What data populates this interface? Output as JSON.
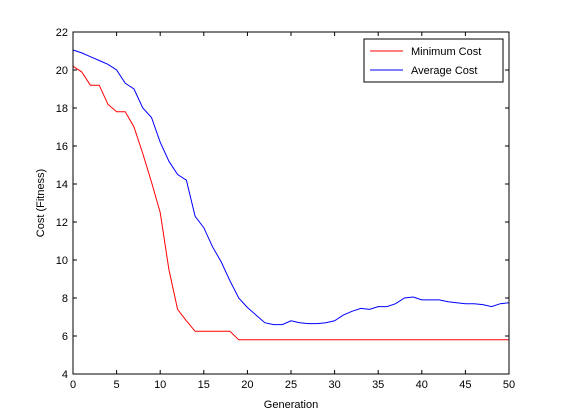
{
  "chart_data": {
    "type": "line",
    "title": "",
    "xlabel": "Generation",
    "ylabel": "Cost (Fitness)",
    "xlim": [
      0,
      50
    ],
    "ylim": [
      4,
      22
    ],
    "xticks": [
      0,
      5,
      10,
      15,
      20,
      25,
      30,
      35,
      40,
      45,
      50
    ],
    "yticks": [
      4,
      6,
      8,
      10,
      12,
      14,
      16,
      18,
      20,
      22
    ],
    "grid": false,
    "legend_position": "top-right",
    "series": [
      {
        "name": "Minimum Cost",
        "color": "#ff0000",
        "x": [
          0,
          1,
          2,
          3,
          4,
          5,
          6,
          7,
          8,
          9,
          10,
          11,
          12,
          13,
          14,
          15,
          16,
          17,
          18,
          19,
          20,
          21,
          22,
          23,
          24,
          25,
          26,
          27,
          28,
          29,
          30,
          31,
          32,
          33,
          34,
          35,
          36,
          37,
          38,
          39,
          40,
          41,
          42,
          43,
          44,
          45,
          46,
          47,
          48,
          49,
          50
        ],
        "y": [
          20.2,
          19.9,
          19.2,
          19.2,
          18.2,
          17.8,
          17.8,
          17.0,
          15.6,
          14.1,
          12.5,
          9.5,
          7.4,
          6.8,
          6.25,
          6.25,
          6.25,
          6.25,
          6.25,
          5.8,
          5.8,
          5.8,
          5.8,
          5.8,
          5.8,
          5.8,
          5.8,
          5.8,
          5.8,
          5.8,
          5.8,
          5.8,
          5.8,
          5.8,
          5.8,
          5.8,
          5.8,
          5.8,
          5.8,
          5.8,
          5.8,
          5.8,
          5.8,
          5.8,
          5.8,
          5.8,
          5.8,
          5.8,
          5.8,
          5.8,
          5.8
        ]
      },
      {
        "name": "Average Cost",
        "color": "#0000ff",
        "x": [
          0,
          1,
          2,
          3,
          4,
          5,
          6,
          7,
          8,
          9,
          10,
          11,
          12,
          13,
          14,
          15,
          16,
          17,
          18,
          19,
          20,
          21,
          22,
          23,
          24,
          25,
          26,
          27,
          28,
          29,
          30,
          31,
          32,
          33,
          34,
          35,
          36,
          37,
          38,
          39,
          40,
          41,
          42,
          43,
          44,
          45,
          46,
          47,
          48,
          49,
          50
        ],
        "y": [
          21.05,
          20.9,
          20.7,
          20.5,
          20.3,
          20.0,
          19.3,
          19.0,
          18.0,
          17.5,
          16.2,
          15.2,
          14.5,
          14.2,
          12.3,
          11.7,
          10.7,
          9.9,
          8.9,
          8.0,
          7.5,
          7.1,
          6.7,
          6.6,
          6.6,
          6.8,
          6.7,
          6.65,
          6.65,
          6.7,
          6.8,
          7.1,
          7.3,
          7.45,
          7.4,
          7.55,
          7.55,
          7.7,
          8.0,
          8.05,
          7.9,
          7.9,
          7.9,
          7.8,
          7.75,
          7.7,
          7.7,
          7.65,
          7.55,
          7.7,
          7.75
        ]
      }
    ]
  }
}
